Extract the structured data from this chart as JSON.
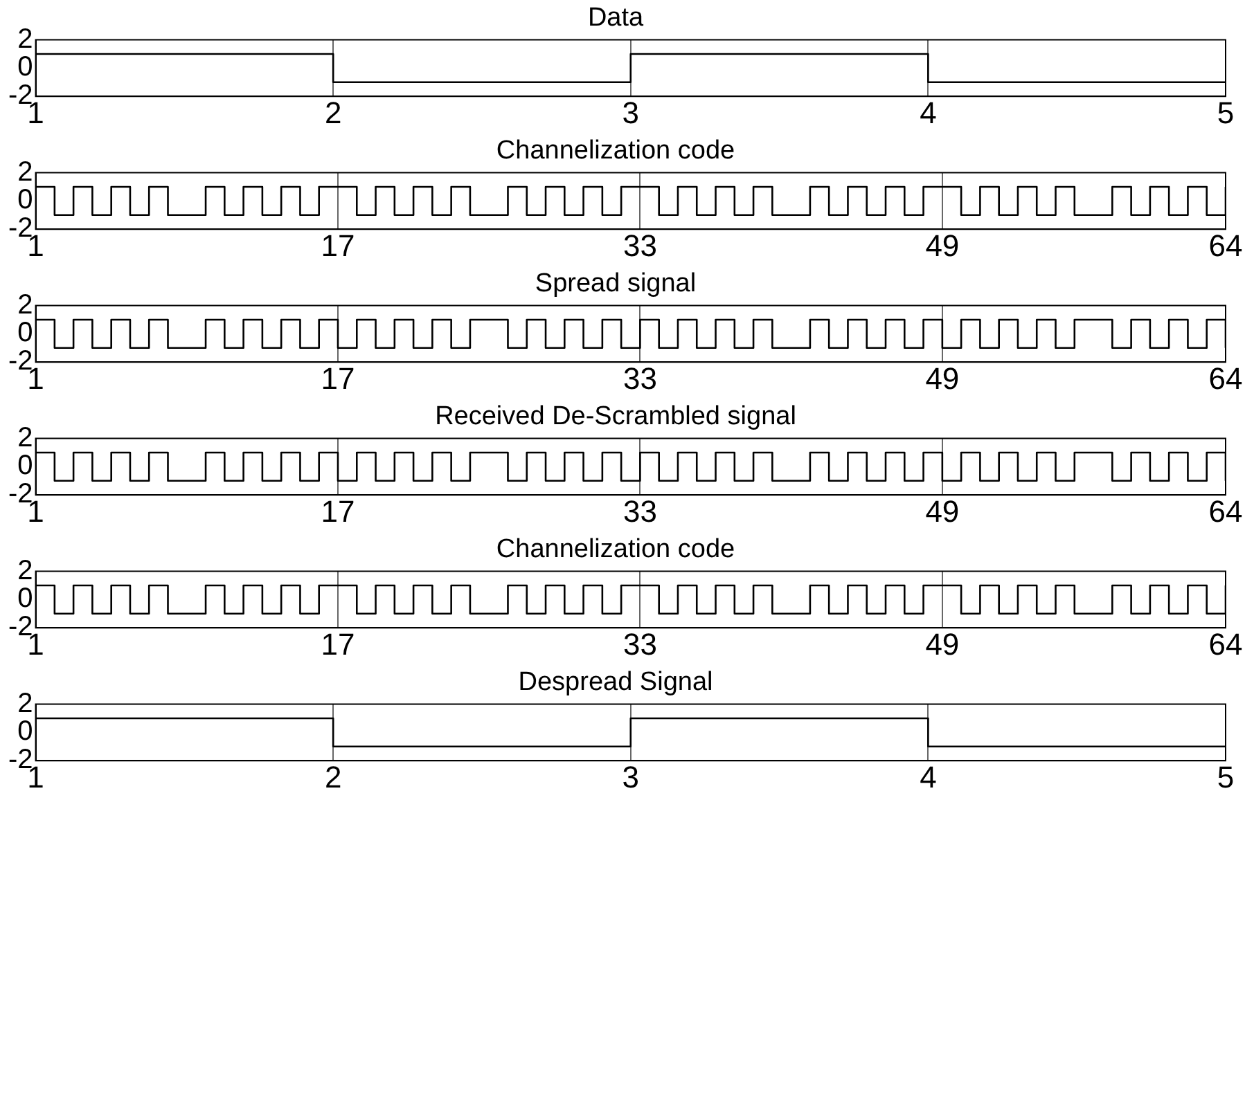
{
  "chart_data": [
    {
      "type": "step",
      "title": "Data",
      "x": [
        1,
        2,
        3,
        4,
        5
      ],
      "grid": "x",
      "xlim": [
        1,
        5
      ],
      "xticks": [
        1,
        2,
        3,
        4,
        5
      ],
      "ylim": [
        -2,
        2
      ],
      "yticks": [
        -2,
        0,
        2
      ],
      "series": [
        {
          "color": "#000000",
          "values": [
            1,
            -1,
            1,
            -1,
            -1
          ]
        }
      ]
    },
    {
      "type": "step",
      "title": "Channelization code",
      "x": [
        1,
        2,
        3,
        4,
        5,
        6,
        7,
        8,
        9,
        10,
        11,
        12,
        13,
        14,
        15,
        16,
        17,
        18,
        19,
        20,
        21,
        22,
        23,
        24,
        25,
        26,
        27,
        28,
        29,
        30,
        31,
        32,
        33,
        34,
        35,
        36,
        37,
        38,
        39,
        40,
        41,
        42,
        43,
        44,
        45,
        46,
        47,
        48,
        49,
        50,
        51,
        52,
        53,
        54,
        55,
        56,
        57,
        58,
        59,
        60,
        61,
        62,
        63,
        64
      ],
      "grid": "x",
      "xlim": [
        1,
        64
      ],
      "xticks": [
        1,
        17,
        33,
        49,
        64
      ],
      "ylim": [
        -2,
        2
      ],
      "yticks": [
        -2,
        0,
        2
      ],
      "series": [
        {
          "color": "#000000",
          "values": [
            1,
            -1,
            1,
            -1,
            1,
            -1,
            1,
            -1,
            -1,
            1,
            -1,
            1,
            -1,
            1,
            -1,
            1,
            1,
            -1,
            1,
            -1,
            1,
            -1,
            1,
            -1,
            -1,
            1,
            -1,
            1,
            -1,
            1,
            -1,
            1,
            1,
            -1,
            1,
            -1,
            1,
            -1,
            1,
            -1,
            -1,
            1,
            -1,
            1,
            -1,
            1,
            -1,
            1,
            1,
            -1,
            1,
            -1,
            1,
            -1,
            1,
            -1,
            -1,
            1,
            -1,
            1,
            -1,
            1,
            -1,
            1
          ]
        }
      ]
    },
    {
      "type": "step",
      "title": "Spread signal",
      "x": [
        1,
        2,
        3,
        4,
        5,
        6,
        7,
        8,
        9,
        10,
        11,
        12,
        13,
        14,
        15,
        16,
        17,
        18,
        19,
        20,
        21,
        22,
        23,
        24,
        25,
        26,
        27,
        28,
        29,
        30,
        31,
        32,
        33,
        34,
        35,
        36,
        37,
        38,
        39,
        40,
        41,
        42,
        43,
        44,
        45,
        46,
        47,
        48,
        49,
        50,
        51,
        52,
        53,
        54,
        55,
        56,
        57,
        58,
        59,
        60,
        61,
        62,
        63,
        64
      ],
      "grid": "x",
      "xlim": [
        1,
        64
      ],
      "xticks": [
        1,
        17,
        33,
        49,
        64
      ],
      "ylim": [
        -2,
        2
      ],
      "yticks": [
        -2,
        0,
        2
      ],
      "series": [
        {
          "color": "#000000",
          "values": [
            1,
            -1,
            1,
            -1,
            1,
            -1,
            1,
            -1,
            -1,
            1,
            -1,
            1,
            -1,
            1,
            -1,
            1,
            -1,
            1,
            -1,
            1,
            -1,
            1,
            -1,
            1,
            1,
            -1,
            1,
            -1,
            1,
            -1,
            1,
            -1,
            1,
            -1,
            1,
            -1,
            1,
            -1,
            1,
            -1,
            -1,
            1,
            -1,
            1,
            -1,
            1,
            -1,
            1,
            -1,
            1,
            -1,
            1,
            -1,
            1,
            -1,
            1,
            1,
            -1,
            1,
            -1,
            1,
            -1,
            1,
            -1
          ]
        }
      ]
    },
    {
      "type": "step",
      "title": "Received De-Scrambled signal",
      "x": [
        1,
        2,
        3,
        4,
        5,
        6,
        7,
        8,
        9,
        10,
        11,
        12,
        13,
        14,
        15,
        16,
        17,
        18,
        19,
        20,
        21,
        22,
        23,
        24,
        25,
        26,
        27,
        28,
        29,
        30,
        31,
        32,
        33,
        34,
        35,
        36,
        37,
        38,
        39,
        40,
        41,
        42,
        43,
        44,
        45,
        46,
        47,
        48,
        49,
        50,
        51,
        52,
        53,
        54,
        55,
        56,
        57,
        58,
        59,
        60,
        61,
        62,
        63,
        64
      ],
      "grid": "x",
      "xlim": [
        1,
        64
      ],
      "xticks": [
        1,
        17,
        33,
        49,
        64
      ],
      "ylim": [
        -2,
        2
      ],
      "yticks": [
        -2,
        0,
        2
      ],
      "series": [
        {
          "color": "#000000",
          "values": [
            1,
            -1,
            1,
            -1,
            1,
            -1,
            1,
            -1,
            -1,
            1,
            -1,
            1,
            -1,
            1,
            -1,
            1,
            -1,
            1,
            -1,
            1,
            -1,
            1,
            -1,
            1,
            1,
            -1,
            1,
            -1,
            1,
            -1,
            1,
            -1,
            1,
            -1,
            1,
            -1,
            1,
            -1,
            1,
            -1,
            -1,
            1,
            -1,
            1,
            -1,
            1,
            -1,
            1,
            -1,
            1,
            -1,
            1,
            -1,
            1,
            -1,
            1,
            1,
            -1,
            1,
            -1,
            1,
            -1,
            1,
            -1
          ]
        }
      ]
    },
    {
      "type": "step",
      "title": "Channelization code",
      "x": [
        1,
        2,
        3,
        4,
        5,
        6,
        7,
        8,
        9,
        10,
        11,
        12,
        13,
        14,
        15,
        16,
        17,
        18,
        19,
        20,
        21,
        22,
        23,
        24,
        25,
        26,
        27,
        28,
        29,
        30,
        31,
        32,
        33,
        34,
        35,
        36,
        37,
        38,
        39,
        40,
        41,
        42,
        43,
        44,
        45,
        46,
        47,
        48,
        49,
        50,
        51,
        52,
        53,
        54,
        55,
        56,
        57,
        58,
        59,
        60,
        61,
        62,
        63,
        64
      ],
      "grid": "x",
      "xlim": [
        1,
        64
      ],
      "xticks": [
        1,
        17,
        33,
        49,
        64
      ],
      "ylim": [
        -2,
        2
      ],
      "yticks": [
        -2,
        0,
        2
      ],
      "series": [
        {
          "color": "#000000",
          "values": [
            1,
            -1,
            1,
            -1,
            1,
            -1,
            1,
            -1,
            -1,
            1,
            -1,
            1,
            -1,
            1,
            -1,
            1,
            1,
            -1,
            1,
            -1,
            1,
            -1,
            1,
            -1,
            -1,
            1,
            -1,
            1,
            -1,
            1,
            -1,
            1,
            1,
            -1,
            1,
            -1,
            1,
            -1,
            1,
            -1,
            -1,
            1,
            -1,
            1,
            -1,
            1,
            -1,
            1,
            1,
            -1,
            1,
            -1,
            1,
            -1,
            1,
            -1,
            -1,
            1,
            -1,
            1,
            -1,
            1,
            -1,
            1
          ]
        }
      ]
    },
    {
      "type": "step",
      "title": "Despread Signal",
      "x": [
        1,
        2,
        3,
        4,
        5
      ],
      "grid": "x",
      "xlim": [
        1,
        5
      ],
      "xticks": [
        1,
        2,
        3,
        4,
        5
      ],
      "ylim": [
        -2,
        2
      ],
      "yticks": [
        -2,
        0,
        2
      ],
      "series": [
        {
          "color": "#000000",
          "values": [
            1,
            -1,
            1,
            -1,
            -1
          ]
        }
      ]
    }
  ]
}
